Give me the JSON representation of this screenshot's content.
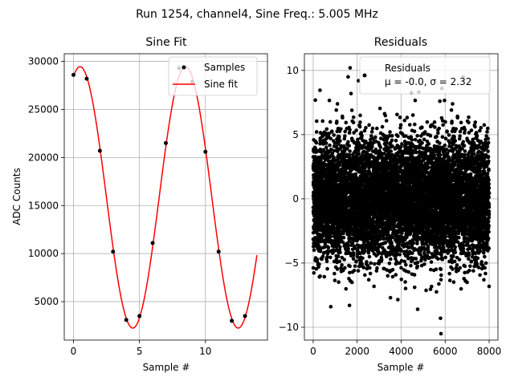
{
  "figure": {
    "suptitle": "Run 1254, channel4, Sine Freq.: 5.005 MHz"
  },
  "chart_data": [
    {
      "type": "line",
      "title": "Sine Fit",
      "xlabel": "Sample #",
      "ylabel": "ADC Counts",
      "xlim": [
        -0.7,
        14.7
      ],
      "ylim": [
        1000,
        30800
      ],
      "xticks": [
        "0",
        "5",
        "10"
      ],
      "xtick_values": [
        0,
        5,
        10
      ],
      "yticks": [
        "5000",
        "10000",
        "15000",
        "20000",
        "25000",
        "30000"
      ],
      "ytick_values": [
        5000,
        10000,
        15000,
        20000,
        25000,
        30000
      ],
      "grid": true,
      "legend": {
        "placement": "top-right",
        "entries": [
          {
            "label": "Samples",
            "marker": "dot",
            "color": "#000000"
          },
          {
            "label": "Sine fit",
            "marker": "line",
            "color": "#ff0000"
          }
        ]
      },
      "series": [
        {
          "name": "Samples",
          "kind": "scatter",
          "color": "#000000",
          "x": [
            0,
            1,
            2,
            3,
            4,
            5,
            6,
            7,
            8,
            9,
            10,
            11,
            12,
            13
          ],
          "y": [
            28600,
            28200,
            20700,
            10200,
            3100,
            3500,
            11100,
            21500,
            29300,
            27900,
            20600,
            10200,
            3000,
            3500
          ]
        },
        {
          "name": "Sine fit",
          "kind": "line",
          "color": "#ff0000",
          "x_range": [
            0,
            13.9
          ],
          "model": {
            "offset": 15850,
            "amplitude": 13600,
            "period": 7.99,
            "peak_x": 0.5
          }
        }
      ]
    },
    {
      "type": "scatter",
      "title": "Residuals",
      "xlabel": "Sample #",
      "ylabel": "",
      "xlim": [
        -400,
        8400
      ],
      "ylim": [
        -11,
        11.3
      ],
      "xticks": [
        "0",
        "2000",
        "4000",
        "6000",
        "8000"
      ],
      "xtick_values": [
        0,
        2000,
        4000,
        6000,
        8000
      ],
      "yticks": [
        "−10",
        "−5",
        "0",
        "5",
        "10"
      ],
      "ytick_values": [
        -10,
        -5,
        0,
        5,
        10
      ],
      "grid": true,
      "legend": {
        "placement": "top-right",
        "entries": [
          {
            "label": "Residuals",
            "marker": "dot",
            "color": "#000000"
          }
        ],
        "annotation": "μ = -0.0, σ = 2.32"
      },
      "series": [
        {
          "name": "Residuals",
          "color": "#000000",
          "count": 8000,
          "mean": 0.0,
          "sigma": 2.32,
          "x_range": [
            0,
            8000
          ],
          "outliers": [
            {
              "x": 1680,
              "y": 10.2
            },
            {
              "x": 1720,
              "y": 8.2
            },
            {
              "x": 1760,
              "y": 6.9
            },
            {
              "x": 2060,
              "y": 9.2
            },
            {
              "x": 2140,
              "y": 6.5
            },
            {
              "x": 5850,
              "y": 8.6
            },
            {
              "x": 5760,
              "y": 7.6
            },
            {
              "x": 5810,
              "y": -10.5
            },
            {
              "x": 5790,
              "y": -9.3
            },
            {
              "x": 4750,
              "y": -8.6
            },
            {
              "x": 1650,
              "y": -8.3
            },
            {
              "x": 800,
              "y": -8.4
            }
          ]
        }
      ]
    }
  ]
}
